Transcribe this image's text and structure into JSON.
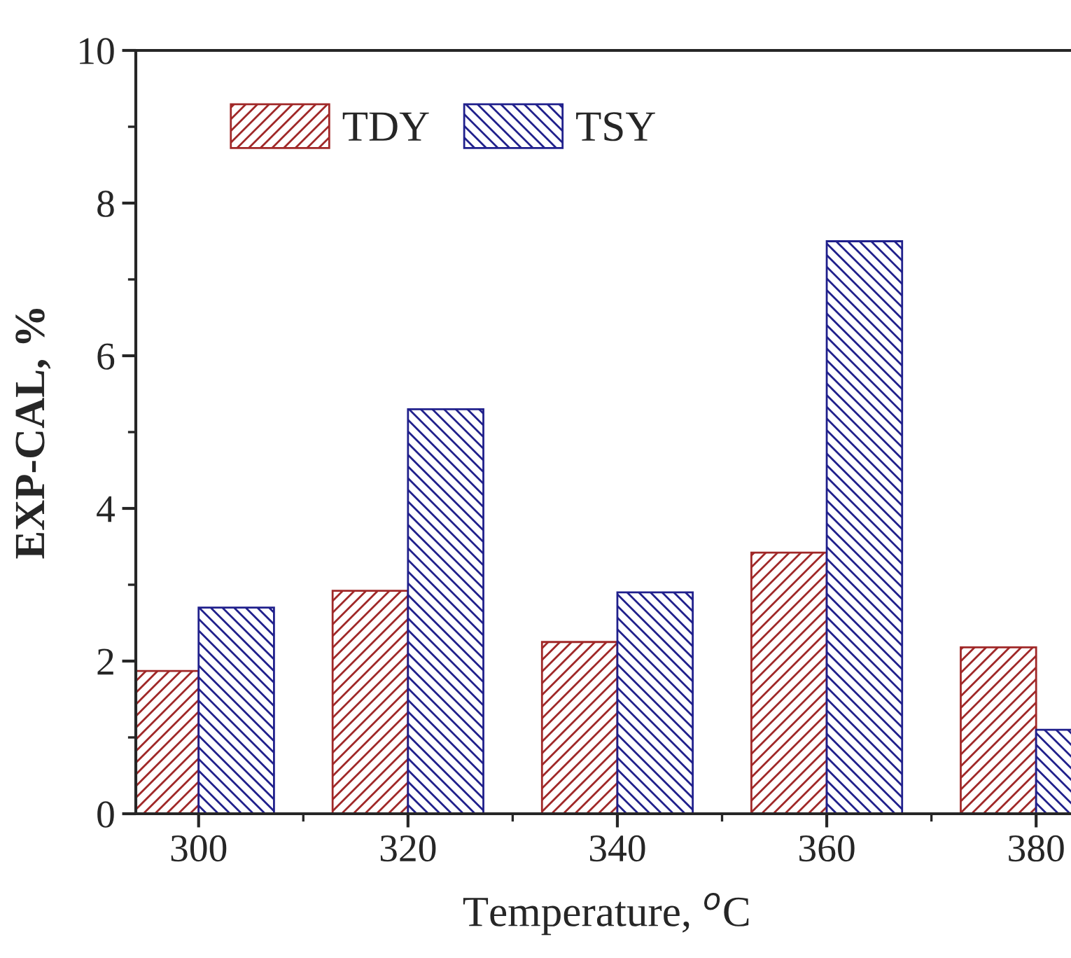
{
  "chart_data": {
    "type": "bar",
    "xlabel": "Temperature, $^{o}$C",
    "ylabel": "EXP-CAL, %",
    "x": [
      300,
      320,
      340,
      360,
      380
    ],
    "series": [
      {
        "name": "TDY",
        "color": "#a02828",
        "values": [
          1.87,
          2.92,
          2.25,
          3.42,
          2.18
        ]
      },
      {
        "name": "TSY",
        "color": "#20208c",
        "values": [
          2.7,
          5.3,
          2.9,
          7.5,
          1.1
        ]
      }
    ],
    "xlim": [
      294,
      384
    ],
    "xticks": [
      300,
      320,
      340,
      360,
      380
    ],
    "ylim": [
      0,
      10
    ],
    "yticks": [
      0,
      2,
      4,
      6,
      8,
      10
    ],
    "grid": false,
    "legend": "top left"
  }
}
